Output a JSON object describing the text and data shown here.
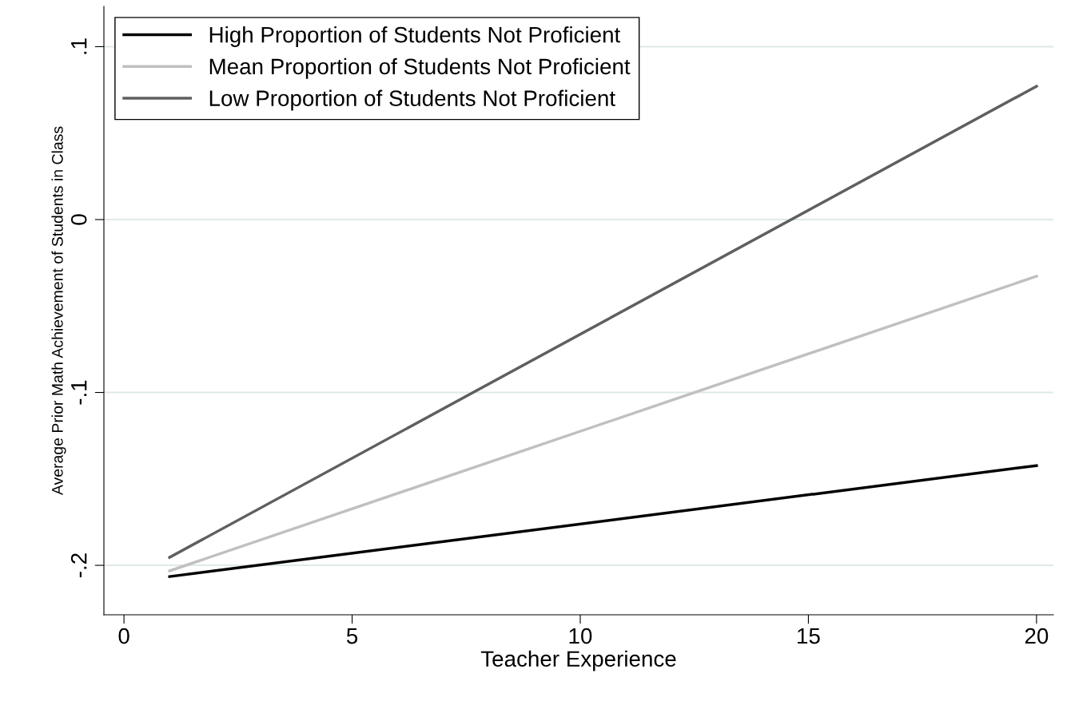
{
  "chart_data": {
    "type": "line",
    "xlabel": "Teacher Experience",
    "ylabel": "Average Prior Math Achievement of Students in Class",
    "x": [
      1,
      20
    ],
    "series": [
      {
        "name": "High Proportion of Students Not Proficient",
        "color": "#000000",
        "values": [
          -0.2065,
          -0.1423
        ]
      },
      {
        "name": "Mean Proportion of Students Not Proficient",
        "color": "#c0c0c0",
        "values": [
          -0.2032,
          -0.0328
        ]
      },
      {
        "name": "Low Proportion of Students Not Proficient",
        "color": "#5f5f5f",
        "values": [
          -0.1954,
          0.0771
        ]
      }
    ],
    "xlim": [
      -0.44,
      20.37
    ],
    "xticks": [
      0,
      5,
      10,
      15,
      20
    ],
    "ylim": [
      -0.2286,
      0.1233
    ],
    "yticks": [
      {
        "value": -0.2,
        "label": "-.2"
      },
      {
        "value": -0.1,
        "label": "-.1"
      },
      {
        "value": 0,
        "label": "0"
      },
      {
        "value": 0.1,
        "label": ".1"
      }
    ],
    "grid": "y",
    "legend": "top left",
    "marker": "none",
    "line_style": "solid"
  }
}
